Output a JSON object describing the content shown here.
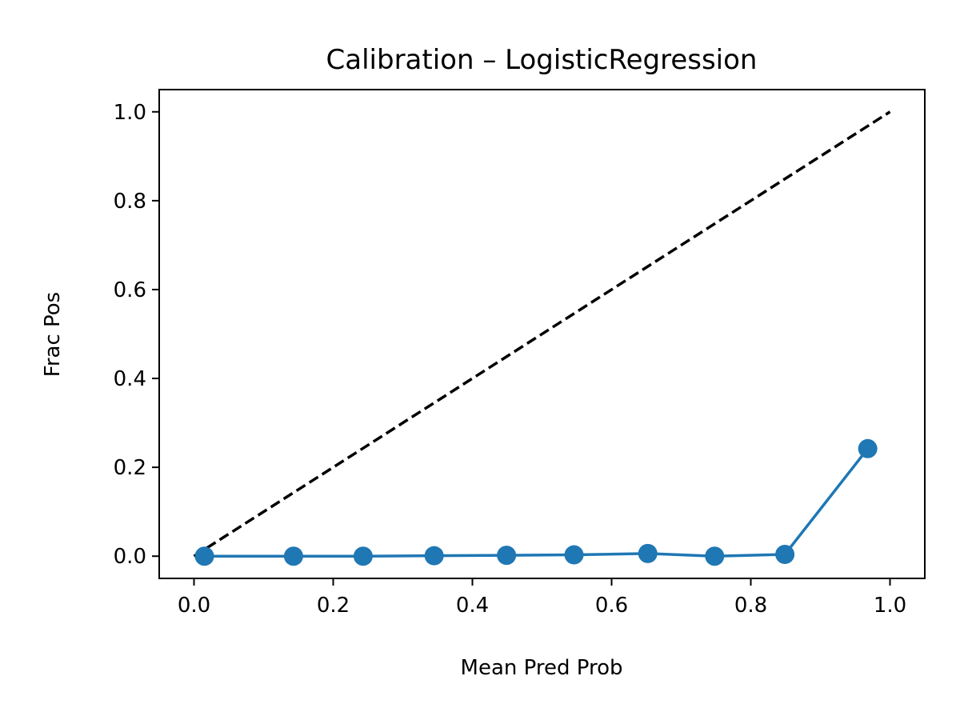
{
  "chart_data": {
    "type": "line",
    "title": "Calibration – LogisticRegression",
    "xlabel": "Mean Pred Prob",
    "ylabel": "Frac Pos",
    "xlim": [
      -0.05,
      1.05
    ],
    "ylim": [
      -0.05,
      1.05
    ],
    "xticks": [
      "0.0",
      "0.2",
      "0.4",
      "0.6",
      "0.8",
      "1.0"
    ],
    "yticks": [
      "0.0",
      "0.2",
      "0.4",
      "0.6",
      "0.8",
      "1.0"
    ],
    "grid": false,
    "reference_line": {
      "x": [
        0,
        1
      ],
      "y": [
        0,
        1
      ],
      "color": "#000000",
      "style": "dashed"
    },
    "series": [
      {
        "color": "#1f77b4",
        "marker": "circle",
        "x": [
          0.015,
          0.143,
          0.243,
          0.345,
          0.449,
          0.546,
          0.652,
          0.748,
          0.849,
          0.968
        ],
        "y": [
          0.0,
          0.0,
          0.0,
          0.001,
          0.002,
          0.003,
          0.006,
          0.0,
          0.004,
          0.242
        ]
      }
    ]
  }
}
